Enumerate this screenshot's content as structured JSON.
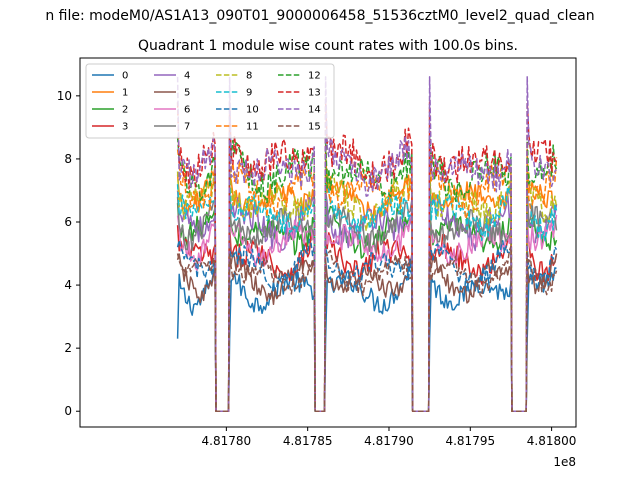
{
  "figure": {
    "suptitle": "n file: modeM0/AS1A13_090T01_9000006458_51536cztM0_level2_quad_clean",
    "title": "Quadrant 1 module wise count rates with 100.0s bins.",
    "x_offset_label": "1e8"
  },
  "chart_data": {
    "type": "line",
    "title": "Quadrant 1 module wise count rates with 100.0s bins.",
    "xlabel": "",
    "ylabel": "",
    "x_unit_multiplier": 100000000,
    "xlim": [
      4.81771,
      4.818015
    ],
    "ylim": [
      -0.5,
      11.2
    ],
    "x_ticks": [
      4.8178,
      4.81785,
      4.8179,
      4.81795,
      4.818
    ],
    "x_tick_labels": [
      "4.81780",
      "4.81785",
      "4.81790",
      "4.81795",
      "4.81800"
    ],
    "y_ticks": [
      0,
      2,
      4,
      6,
      8,
      10
    ],
    "y_tick_labels": [
      "0",
      "2",
      "4",
      "6",
      "8",
      "10"
    ],
    "grid": false,
    "legend": {
      "position": "top-left",
      "columns": 4
    },
    "segments": [
      {
        "x_start": 4.81777,
        "x_end": 4.817793
      },
      {
        "x_start": 4.817802,
        "x_end": 4.817854
      },
      {
        "x_start": 4.817861,
        "x_end": 4.817914
      },
      {
        "x_start": 4.817925,
        "x_end": 4.817975
      },
      {
        "x_start": 4.817985,
        "x_end": 4.818003
      }
    ],
    "gap_level": 0.0,
    "series": [
      {
        "name": "0",
        "color": "#1f77b4",
        "style": "solid",
        "mean": 3.9,
        "amp": 0.35,
        "spike": 2.3
      },
      {
        "name": "1",
        "color": "#ff7f0e",
        "style": "solid",
        "mean": 6.8,
        "amp": 0.35,
        "spike": 7.5
      },
      {
        "name": "2",
        "color": "#2ca02c",
        "style": "solid",
        "mean": 5.7,
        "amp": 0.4,
        "spike": 6.6
      },
      {
        "name": "3",
        "color": "#d62728",
        "style": "solid",
        "mean": 4.9,
        "amp": 0.4,
        "spike": 5.9
      },
      {
        "name": "4",
        "color": "#9467bd",
        "style": "solid",
        "mean": 6.0,
        "amp": 0.45,
        "spike": 7.0
      },
      {
        "name": "5",
        "color": "#8c564b",
        "style": "solid",
        "mean": 4.2,
        "amp": 0.3,
        "spike": 4.8
      },
      {
        "name": "6",
        "color": "#e377c2",
        "style": "solid",
        "mean": 5.4,
        "amp": 0.4,
        "spike": 6.2
      },
      {
        "name": "7",
        "color": "#7f7f7f",
        "style": "solid",
        "mean": 5.9,
        "amp": 0.4,
        "spike": 6.8
      },
      {
        "name": "8",
        "color": "#bcbd22",
        "style": "dashed",
        "mean": 6.7,
        "amp": 0.45,
        "spike": 7.6
      },
      {
        "name": "9",
        "color": "#17becf",
        "style": "dashed",
        "mean": 6.3,
        "amp": 0.4,
        "spike": 7.2
      },
      {
        "name": "10",
        "color": "#1f77b4",
        "style": "dashed",
        "mean": 4.6,
        "amp": 0.35,
        "spike": 5.2
      },
      {
        "name": "11",
        "color": "#ff7f0e",
        "style": "dashed",
        "mean": 7.1,
        "amp": 0.45,
        "spike": 8.3
      },
      {
        "name": "12",
        "color": "#2ca02c",
        "style": "dashed",
        "mean": 7.6,
        "amp": 0.5,
        "spike": 8.7
      },
      {
        "name": "13",
        "color": "#d62728",
        "style": "dashed",
        "mean": 8.0,
        "amp": 0.55,
        "spike": 9.8
      },
      {
        "name": "14",
        "color": "#9467bd",
        "style": "dashed",
        "mean": 7.8,
        "amp": 0.5,
        "spike": 10.6
      },
      {
        "name": "15",
        "color": "#8c564b",
        "style": "dashed",
        "mean": 4.4,
        "amp": 0.3,
        "spike": 5.0
      }
    ]
  }
}
